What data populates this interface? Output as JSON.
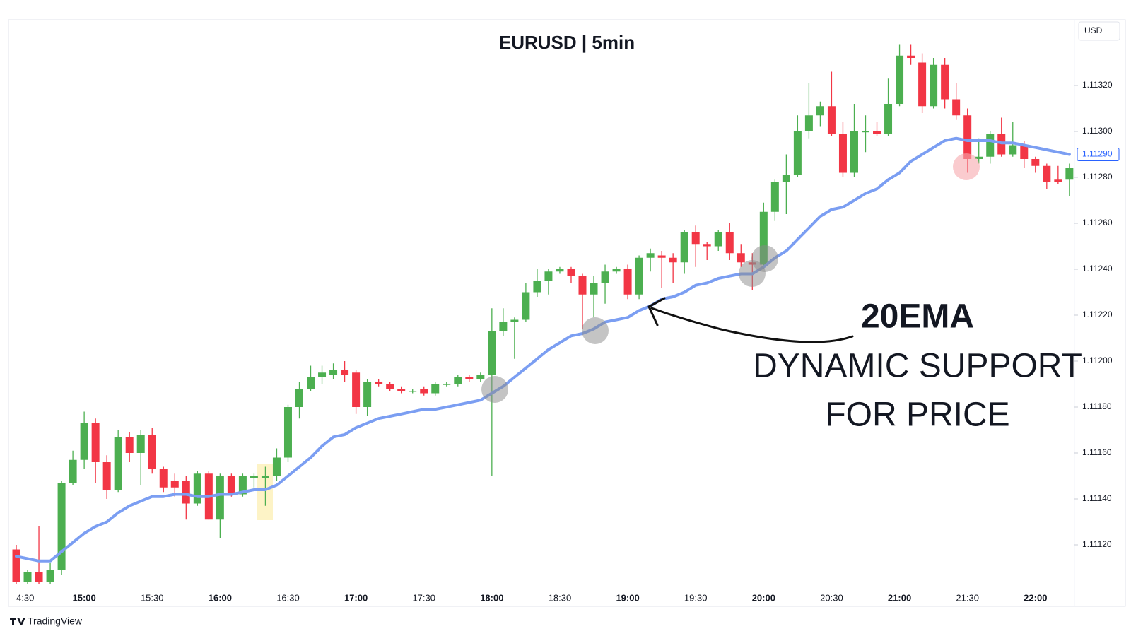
{
  "chart_data": {
    "type": "candlestick",
    "title": "EURUSD | 5min",
    "currency": "USD",
    "brand": "TradingView",
    "annotations": [
      "20EMA",
      "DYNAMIC SUPPORT",
      "FOR PRICE"
    ],
    "categories": [
      "4:30",
      null,
      null,
      null,
      null,
      null,
      "15:00",
      null,
      null,
      null,
      null,
      null,
      "15:30",
      null,
      null,
      null,
      null,
      null,
      "16:00",
      null,
      null,
      null,
      null,
      null,
      "16:30",
      null,
      null,
      null,
      null,
      null,
      "17:00",
      null,
      null,
      null,
      null,
      null,
      "17:30",
      null,
      null,
      null,
      null,
      null,
      "18:00",
      null,
      null,
      null,
      null,
      null,
      "18:30",
      null,
      null,
      null,
      null,
      null,
      "19:00",
      null,
      null,
      null,
      null,
      null,
      "19:30",
      null,
      null,
      null,
      null,
      null,
      "20:00",
      null,
      null,
      null,
      null,
      null,
      "20:30",
      null,
      null,
      null,
      null,
      null,
      "21:00",
      null,
      null,
      null,
      null,
      null,
      "21:30",
      null,
      null,
      null,
      null,
      null,
      "22:00",
      null,
      null,
      null
    ],
    "open": [
      1.11118,
      1.11104,
      1.11108,
      1.11104,
      1.11109,
      1.11147,
      1.11157,
      1.11173,
      1.11156,
      1.11144,
      1.11167,
      1.1116,
      1.11168,
      1.11153,
      1.11148,
      1.11148,
      1.11138,
      1.11151,
      1.11131,
      1.1115,
      1.11142,
      1.11149,
      1.11149,
      1.1115,
      1.11158,
      1.1118,
      1.11188,
      1.11193,
      1.11194,
      1.11196,
      1.11195,
      1.1118,
      1.11191,
      1.1119,
      1.11188,
      1.11187,
      1.11188,
      1.11186,
      1.1119,
      1.1119,
      1.11193,
      1.11192,
      1.11194,
      1.11213,
      1.11217,
      1.11218,
      1.1123,
      1.11235,
      1.11239,
      1.1124,
      1.11237,
      1.11229,
      1.11234,
      1.11239,
      1.1124,
      1.11229,
      1.11245,
      1.11246,
      1.11245,
      1.11243,
      1.11256,
      1.11251,
      1.1125,
      1.11256,
      1.11247,
      1.11243,
      1.11242,
      1.11265,
      1.11278,
      1.11281,
      1.113,
      1.11307,
      1.11311,
      1.11299,
      1.11282,
      1.113,
      1.113,
      1.11299,
      1.11312,
      1.11333,
      1.1133,
      1.11311,
      1.11329,
      1.11314,
      1.11307,
      1.11288,
      1.11289,
      1.11299,
      1.1129,
      1.11294,
      1.11288,
      1.11285,
      1.11279,
      1.11279
    ],
    "high": [
      1.1112,
      1.11109,
      1.11128,
      1.11112,
      1.11148,
      1.11161,
      1.11178,
      1.11175,
      1.11159,
      1.1117,
      1.11169,
      1.1117,
      1.11171,
      1.11154,
      1.11151,
      1.1115,
      1.11152,
      1.11152,
      1.11151,
      1.11151,
      1.11151,
      1.11151,
      1.11154,
      1.11162,
      1.11181,
      1.11191,
      1.11198,
      1.11198,
      1.11199,
      1.112,
      1.11196,
      1.11192,
      1.11192,
      1.11191,
      1.11189,
      1.11188,
      1.11189,
      1.11191,
      1.11191,
      1.11194,
      1.11194,
      1.11195,
      1.11223,
      1.11223,
      1.11219,
      1.11234,
      1.1124,
      1.1124,
      1.11241,
      1.11241,
      1.11238,
      1.11237,
      1.11242,
      1.11241,
      1.11242,
      1.11246,
      1.11249,
      1.11248,
      1.11247,
      1.11257,
      1.11259,
      1.11252,
      1.11257,
      1.1126,
      1.11251,
      1.11247,
      1.11269,
      1.11279,
      1.1129,
      1.11307,
      1.11321,
      1.11313,
      1.11326,
      1.11304,
      1.11312,
      1.11307,
      1.11304,
      1.11323,
      1.11338,
      1.11338,
      1.11334,
      1.11332,
      1.11332,
      1.11321,
      1.1131,
      1.11297,
      1.113,
      1.11306,
      1.11304,
      1.11296,
      1.11289,
      1.11286,
      1.11285,
      1.11286
    ],
    "low": [
      1.11103,
      1.11103,
      1.11103,
      1.11103,
      1.11107,
      1.11146,
      1.11153,
      1.11147,
      1.1114,
      1.11143,
      1.11156,
      1.11146,
      1.11151,
      1.11143,
      1.11141,
      1.11131,
      1.11137,
      1.11131,
      1.11123,
      1.11141,
      1.11141,
      1.11145,
      1.11137,
      1.11148,
      1.11156,
      1.11175,
      1.11187,
      1.1119,
      1.11192,
      1.11191,
      1.11177,
      1.11176,
      1.11189,
      1.11187,
      1.11186,
      1.11186,
      1.11185,
      1.11185,
      1.11189,
      1.11189,
      1.11191,
      1.11191,
      1.1115,
      1.11211,
      1.11201,
      1.11217,
      1.11228,
      1.11229,
      1.11238,
      1.11234,
      1.11214,
      1.11219,
      1.11225,
      1.11238,
      1.11227,
      1.11227,
      1.11239,
      1.11232,
      1.11234,
      1.11238,
      1.11241,
      1.11244,
      1.11248,
      1.11244,
      1.11241,
      1.11231,
      1.1124,
      1.11261,
      1.11264,
      1.1128,
      1.11297,
      1.11302,
      1.11298,
      1.1128,
      1.1128,
      1.11291,
      1.11298,
      1.11298,
      1.11311,
      1.11329,
      1.11308,
      1.1131,
      1.1131,
      1.11305,
      1.11282,
      1.11286,
      1.11286,
      1.11289,
      1.11289,
      1.11284,
      1.11282,
      1.11275,
      1.11277,
      1.11272
    ],
    "close": [
      1.11104,
      1.11108,
      1.11104,
      1.11109,
      1.11147,
      1.11157,
      1.11173,
      1.11156,
      1.11144,
      1.11167,
      1.1116,
      1.11168,
      1.11153,
      1.11145,
      1.11145,
      1.11138,
      1.11151,
      1.11131,
      1.1115,
      1.11142,
      1.1115,
      1.1115,
      1.1115,
      1.11158,
      1.1118,
      1.11188,
      1.11193,
      1.11195,
      1.11196,
      1.11194,
      1.1118,
      1.11191,
      1.1119,
      1.11188,
      1.11187,
      1.11187,
      1.11186,
      1.1119,
      1.1119,
      1.11193,
      1.11192,
      1.11194,
      1.11213,
      1.11217,
      1.11218,
      1.1123,
      1.11235,
      1.11239,
      1.1124,
      1.11237,
      1.11229,
      1.11234,
      1.11239,
      1.1124,
      1.11229,
      1.11245,
      1.11247,
      1.11245,
      1.11243,
      1.11256,
      1.11251,
      1.1125,
      1.11256,
      1.11247,
      1.11243,
      1.11242,
      1.11265,
      1.11278,
      1.11281,
      1.113,
      1.11307,
      1.11311,
      1.11299,
      1.11282,
      1.113,
      1.113,
      1.11299,
      1.11312,
      1.11333,
      1.11332,
      1.11311,
      1.11329,
      1.11314,
      1.11307,
      1.11288,
      1.11289,
      1.11299,
      1.1129,
      1.11294,
      1.11288,
      1.11285,
      1.11278,
      1.11278,
      1.11284
    ],
    "up_color": "#4caf50",
    "down_color": "#f23645",
    "ema": {
      "color": "#7b9ef2",
      "values": [
        1.11115,
        1.11114,
        1.11113,
        1.11113,
        1.11117,
        1.11121,
        1.11125,
        1.11128,
        1.1113,
        1.11134,
        1.11137,
        1.11139,
        1.11141,
        1.11141,
        1.11142,
        1.11142,
        1.11141,
        1.11141,
        1.11142,
        1.11142,
        1.11143,
        1.11144,
        1.11144,
        1.11146,
        1.1115,
        1.11154,
        1.11158,
        1.11163,
        1.11167,
        1.11168,
        1.11171,
        1.11173,
        1.11175,
        1.11176,
        1.11177,
        1.11178,
        1.11179,
        1.11179,
        1.1118,
        1.11181,
        1.11182,
        1.11183,
        1.11186,
        1.11189,
        1.11193,
        1.11197,
        1.11201,
        1.11205,
        1.11208,
        1.11211,
        1.11212,
        1.11214,
        1.11217,
        1.11218,
        1.11219,
        1.11222,
        1.11224,
        1.11227,
        1.11228,
        1.1123,
        1.11233,
        1.11234,
        1.11236,
        1.11237,
        1.11238,
        1.11238,
        1.11241,
        1.11245,
        1.11248,
        1.11253,
        1.11258,
        1.11263,
        1.11266,
        1.11267,
        1.1127,
        1.11273,
        1.11275,
        1.11279,
        1.11282,
        1.11287,
        1.1129,
        1.11293,
        1.11296,
        1.11297,
        1.11296,
        1.11296,
        1.11296,
        1.11295,
        1.11295,
        1.11294,
        1.11293,
        1.11292,
        1.11291,
        1.1129
      ]
    },
    "last_label": {
      "value": 1.1129,
      "label": "1.11290"
    },
    "ylim": [
      1.111,
      1.1135
    ],
    "yticks": [
      {
        "value": 1.1112,
        "label": "1.11120"
      },
      {
        "value": 1.1114,
        "label": "1.11140"
      },
      {
        "value": 1.1116,
        "label": "1.11160"
      },
      {
        "value": 1.1118,
        "label": "1.11180"
      },
      {
        "value": 1.112,
        "label": "1.11200"
      },
      {
        "value": 1.1122,
        "label": "1.11220"
      },
      {
        "value": 1.1124,
        "label": "1.11240"
      },
      {
        "value": 1.1126,
        "label": "1.11260"
      },
      {
        "value": 1.1128,
        "label": "1.11280"
      },
      {
        "value": 1.113,
        "label": "1.11300"
      },
      {
        "value": 1.1132,
        "label": "1.11320"
      }
    ],
    "grid": false
  }
}
